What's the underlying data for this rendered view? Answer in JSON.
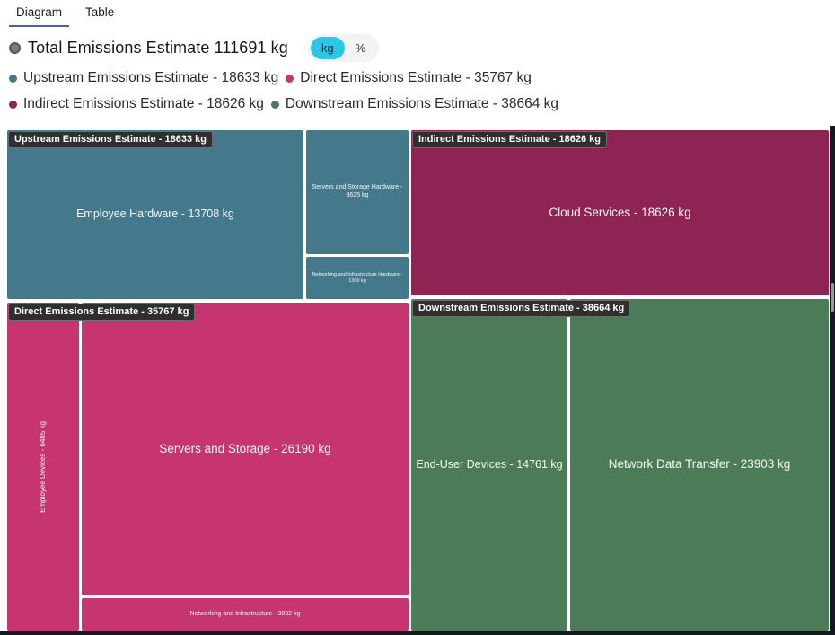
{
  "tabs": [
    {
      "label": "Diagram",
      "active": true
    },
    {
      "label": "Table",
      "active": false
    }
  ],
  "header": {
    "title": "Total Emissions Estimate 111691 kg",
    "unit_toggle": {
      "options": [
        "kg",
        "%"
      ],
      "selected": "kg"
    }
  },
  "legend": [
    {
      "label": "Upstream Emissions Estimate - 18633 kg",
      "color": "#44798C"
    },
    {
      "label": "Direct Emissions Estimate - 35767 kg",
      "color": "#C73570"
    },
    {
      "label": "Indirect Emissions Estimate - 18626 kg",
      "color": "#8E2453"
    },
    {
      "label": "Downstream Emissions Estimate - 38664 kg",
      "color": "#4C7C57"
    }
  ],
  "chart_data": {
    "type": "treemap",
    "title": "Total Emissions Estimate 111691 kg",
    "unit": "kg",
    "total_kg": 111691,
    "groups": [
      {
        "name": "Upstream Emissions Estimate",
        "value_kg": 18633,
        "badge": "Upstream Emissions Estimate - 18633 kg",
        "color": "#44798C",
        "children": [
          {
            "name": "Employee Hardware",
            "value_kg": 13708,
            "label": "Employee Hardware - 13708 kg"
          },
          {
            "name": "Servers and Storage Hardware",
            "value_kg": 3625,
            "label": "Servers and Storage Hardware - 3625 kg"
          },
          {
            "name": "Networking and Infrastructure Hardware",
            "value_kg": 1300,
            "label": "Networking and Infrastructure Hardware - 1300 kg"
          }
        ]
      },
      {
        "name": "Direct Emissions Estimate",
        "value_kg": 35767,
        "badge": "Direct Emissions Estimate - 35767 kg",
        "color": "#C73570",
        "children": [
          {
            "name": "Employee Devices",
            "value_kg": 6485,
            "label": "Employee Devices - 6485 kg"
          },
          {
            "name": "Servers and Storage",
            "value_kg": 26190,
            "label": "Servers and Storage - 26190 kg"
          },
          {
            "name": "Networking and Infrastructure",
            "value_kg": 3092,
            "label": "Networking and Infrastructure - 3092 kg"
          }
        ]
      },
      {
        "name": "Indirect Emissions Estimate",
        "value_kg": 18626,
        "badge": "Indirect Emissions Estimate - 18626 kg",
        "color": "#8E2453",
        "children": [
          {
            "name": "Cloud Services",
            "value_kg": 18626,
            "label": "Cloud Services - 18626 kg"
          }
        ]
      },
      {
        "name": "Downstream Emissions Estimate",
        "value_kg": 38664,
        "badge": "Downstream Emissions Estimate - 38664 kg",
        "color": "#4C7C57",
        "children": [
          {
            "name": "End-User Devices",
            "value_kg": 14761,
            "label": "End-User Devices - 14761 kg"
          },
          {
            "name": "Network Data Transfer",
            "value_kg": 23903,
            "label": "Network Data Transfer - 23903 kg"
          }
        ]
      }
    ]
  }
}
